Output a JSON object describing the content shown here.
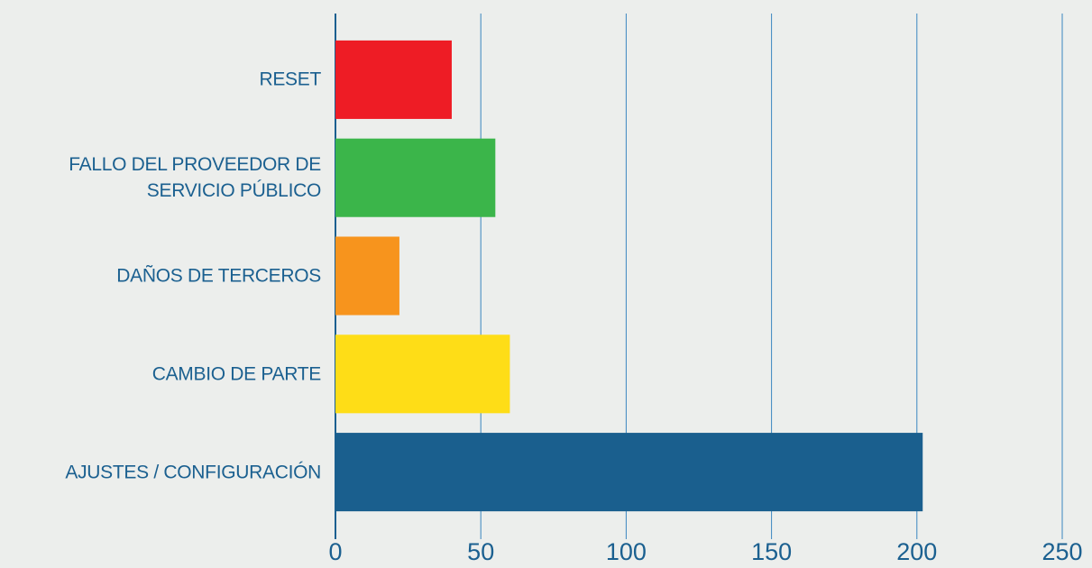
{
  "chart_data": {
    "type": "bar",
    "orientation": "horizontal",
    "categories": [
      "RESET",
      "FALLO DEL PROVEEDOR DE\nSERVICIO PÚBLICO",
      "DAÑOS DE TERCEROS",
      "CAMBIO DE PARTE",
      "AJUSTES / CONFIGURACIÓN"
    ],
    "values": [
      40,
      55,
      22,
      60,
      202
    ],
    "colors": [
      "#ee1c25",
      "#3bb54a",
      "#f7941d",
      "#fedd17",
      "#1a5f8e"
    ],
    "xlim": [
      0,
      250
    ],
    "xticks": [
      0,
      50,
      100,
      150,
      200,
      250
    ],
    "grid": true
  }
}
